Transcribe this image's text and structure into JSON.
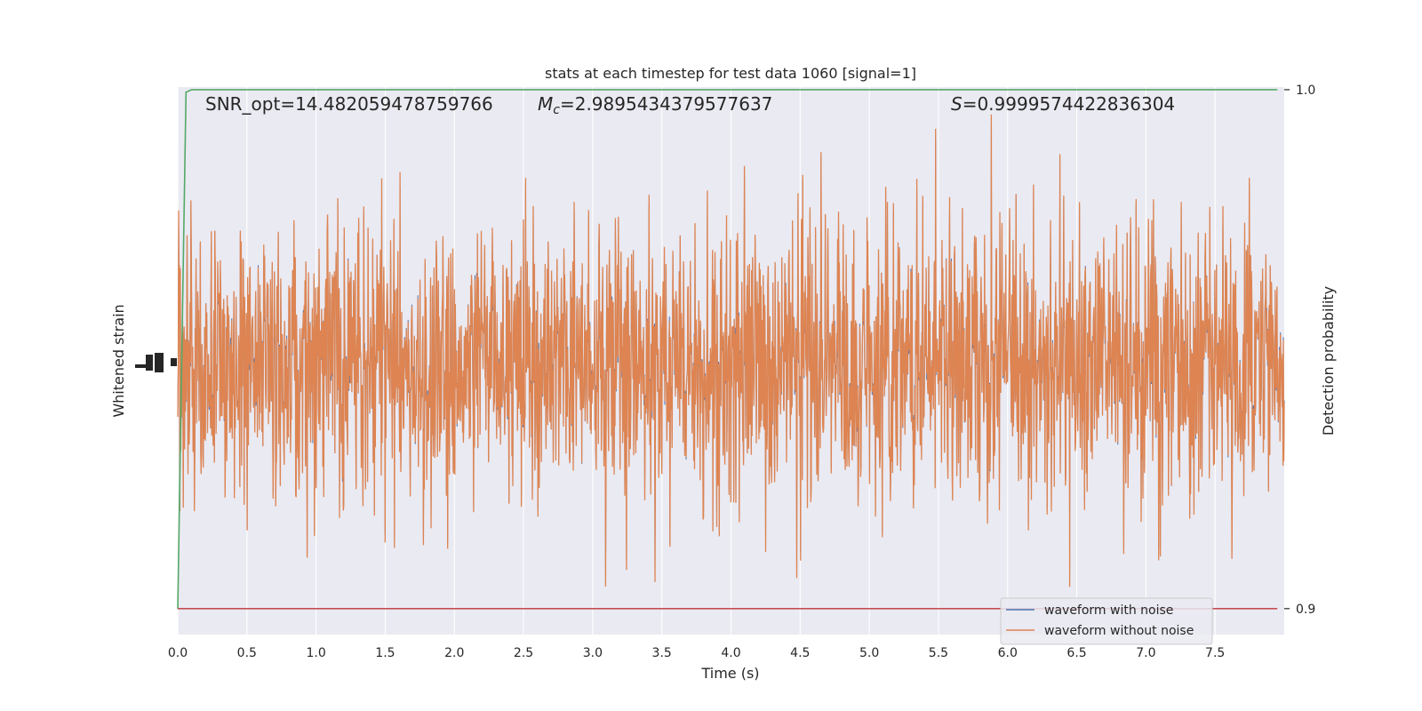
{
  "chart_data": {
    "type": "line",
    "title": "stats at each timestep for test data 1060 [signal=1]",
    "xlabel": "Time (s)",
    "ylabel_left": "Whitened strain",
    "ylabel_right": "Detection probability",
    "xlim": [
      0.0,
      8.0
    ],
    "xticks": [
      "0.0",
      "0.5",
      "1.0",
      "1.5",
      "2.0",
      "2.5",
      "3.0",
      "3.5",
      "4.0",
      "4.5",
      "5.0",
      "5.5",
      "6.0",
      "6.5",
      "7.0",
      "7.5"
    ],
    "right_ylim": [
      0.895,
      1.0005
    ],
    "right_yticks": [
      "0.9",
      "1.0"
    ],
    "grid": true,
    "legend_position": "lower-right",
    "annotations": {
      "snr": "SNR_opt=14.482059478759766",
      "mc": "=2.9895434379577637",
      "mc_symbol": "M",
      "mc_sub": "c",
      "s": "=0.9999574422836304",
      "s_symbol": "S"
    },
    "series": [
      {
        "name": "waveform with noise",
        "color": "#4c72b0",
        "description_values": "whitened strain, hidden beneath orange trace"
      },
      {
        "name": "waveform without noise",
        "color": "#dd8452",
        "amplitude_range": [
          -1.0,
          1.0
        ]
      },
      {
        "name": "",
        "color": "#55a868",
        "axis": "right",
        "x": [
          0.0,
          0.06,
          0.1,
          7.95
        ],
        "y": [
          0.9,
          0.9995,
          1.0,
          1.0
        ]
      },
      {
        "name": "",
        "color": "#c44e52",
        "axis": "right",
        "x": [
          0.0,
          7.95
        ],
        "y": [
          0.9,
          0.9
        ]
      }
    ],
    "colors": {
      "background": "#eaeaf2",
      "grid": "#ffffff"
    }
  }
}
